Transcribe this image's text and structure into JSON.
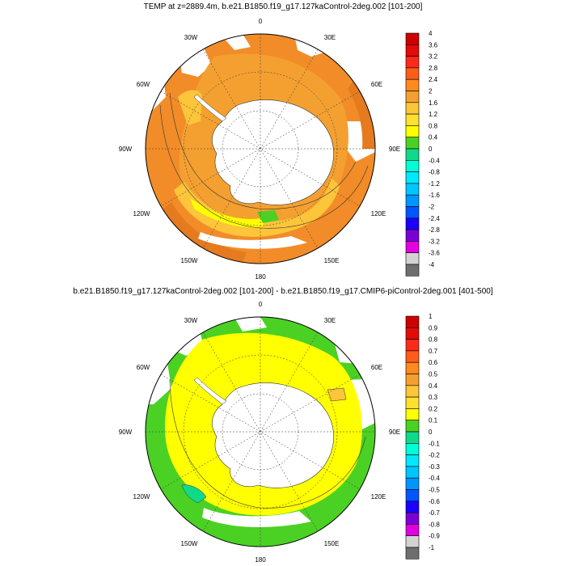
{
  "panels": [
    {
      "title": "TEMP at z=2889.4m, b.e21.B1850.f19_g17.127kaControl-2deg.002 [101-200]",
      "lon_labels": {
        "top": "0",
        "top_right": "30E",
        "right_upper": "60E",
        "right": "90E",
        "right_lower": "120E",
        "bottom_right": "150E",
        "bottom": "180",
        "bottom_left": "150W",
        "left_lower": "120W",
        "left": "90W",
        "left_upper": "60W",
        "top_left": "30W"
      },
      "colorbar": {
        "labels": [
          "4",
          "3.6",
          "3.2",
          "2.8",
          "2.4",
          "2",
          "1.6",
          "1.2",
          "0.8",
          "0.4",
          "0",
          "-0.4",
          "-0.8",
          "-1.2",
          "-1.6",
          "-2",
          "-2.4",
          "-2.8",
          "-3.2",
          "-3.6",
          "-4"
        ],
        "colors": [
          "#cc0000",
          "#e30a0a",
          "#ff2a1a",
          "#ff5c1a",
          "#ff8a1f",
          "#f4a030",
          "#fcc53a",
          "#ffe030",
          "#ffff00",
          "#4bd124",
          "#11d98a",
          "#00ffd7",
          "#00e8ff",
          "#00c6ff",
          "#0096ff",
          "#0055ff",
          "#1a00ff",
          "#7b00d6",
          "#e000e0",
          "#d3d3d3",
          "#6e6e6e"
        ]
      }
    },
    {
      "title": "b.e21.B1850.f19_g17.127kaControl-2deg.002 [101-200] - b.e21.B1850.f19_g17.CMIP6-piControl-2deg.001 [401-500]",
      "lon_labels": {
        "top": "0",
        "top_right": "30E",
        "right_upper": "60E",
        "right": "90E",
        "right_lower": "120E",
        "bottom_right": "150E",
        "bottom": "180",
        "bottom_left": "150W",
        "left_lower": "120W",
        "left": "90W",
        "left_upper": "60W",
        "top_left": "30W"
      },
      "colorbar": {
        "labels": [
          "1",
          "0.9",
          "0.8",
          "0.7",
          "0.6",
          "0.5",
          "0.4",
          "0.3",
          "0.2",
          "0.1",
          "0",
          "-0.1",
          "-0.2",
          "-0.3",
          "-0.4",
          "-0.5",
          "-0.6",
          "-0.7",
          "-0.8",
          "-0.9",
          "-1"
        ],
        "colors": [
          "#cc0000",
          "#e30a0a",
          "#ff2a1a",
          "#ff5c1a",
          "#ff8a1f",
          "#f4a030",
          "#fcc53a",
          "#ffe030",
          "#ffff00",
          "#4bd124",
          "#11d98a",
          "#00ffd7",
          "#00e8ff",
          "#00c6ff",
          "#0096ff",
          "#0055ff",
          "#1a00ff",
          "#7b00d6",
          "#e000e0",
          "#d3d3d3",
          "#6e6e6e"
        ]
      }
    }
  ]
}
